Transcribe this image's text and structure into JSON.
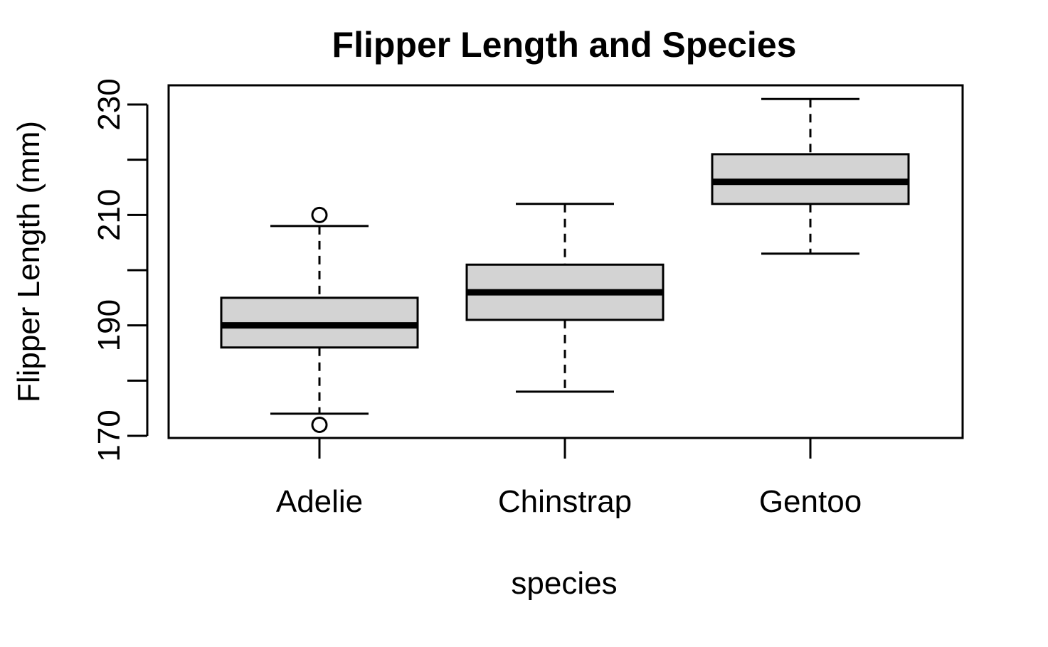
{
  "chart_data": {
    "type": "box",
    "title": "Flipper Length and Species",
    "xlabel": "species",
    "ylabel": "Flipper Length (mm)",
    "categories": [
      "Adelie",
      "Chinstrap",
      "Gentoo"
    ],
    "ylim": [
      169.5,
      231.5
    ],
    "y_ticks": [
      170,
      180,
      190,
      200,
      210,
      220,
      230
    ],
    "y_tick_labels": [
      "170",
      "",
      "190",
      "",
      "210",
      "",
      "230"
    ],
    "grid": false,
    "box_fill": "#d3d3d3",
    "line_color": "#000000",
    "boxes": [
      {
        "category": "Adelie",
        "whisker_low": 174,
        "q1": 186,
        "median": 190,
        "q3": 195,
        "whisker_high": 208,
        "outliers": [
          172,
          210
        ]
      },
      {
        "category": "Chinstrap",
        "whisker_low": 178,
        "q1": 191,
        "median": 196,
        "q3": 201,
        "whisker_high": 212,
        "outliers": []
      },
      {
        "category": "Gentoo",
        "whisker_low": 203,
        "q1": 212,
        "median": 216,
        "q3": 221,
        "whisker_high": 231,
        "outliers": []
      }
    ]
  }
}
